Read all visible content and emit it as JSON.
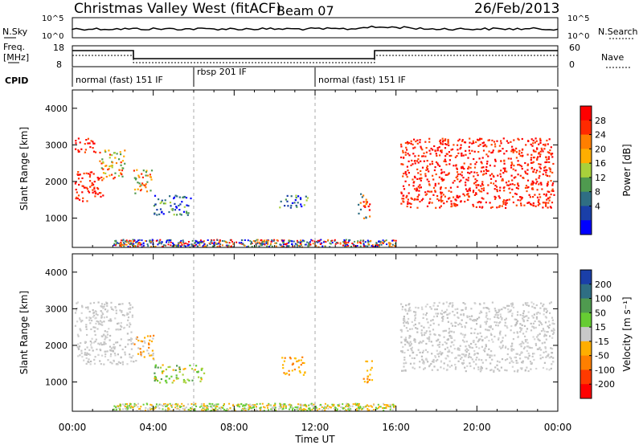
{
  "header": {
    "station": "Christmas Valley West (fitACF)",
    "beam": "Beam 07",
    "date": "26/Feb/2013"
  },
  "top_panels": {
    "noise_left_label": "N.Sky",
    "noise_right_label": "N.Search",
    "noise_ticks_left": [
      "10^5",
      "10^0"
    ],
    "noise_ticks_right": [
      "10^5",
      "10^0"
    ],
    "freq_label_1": "Freq.",
    "freq_label_2": "[MHz]",
    "freq_ticks": [
      "18",
      "8"
    ],
    "nave_label": "Nave",
    "nave_ticks": [
      "60",
      "0"
    ],
    "cpid_label": "CPID",
    "cpid_segments": [
      {
        "label": "normal (fast) 151 IF",
        "start_h": 0,
        "end_h": 6
      },
      {
        "label": "rbsp 201 IF",
        "start_h": 6,
        "end_h": 12
      },
      {
        "label": "normal (fast) 151 IF",
        "start_h": 12,
        "end_h": 24
      }
    ]
  },
  "chart_data": [
    {
      "type": "heatmap",
      "panel": "power",
      "xlabel": "Time UT",
      "ylabel": "Slant Range [km]",
      "xlim": [
        0,
        24
      ],
      "ylim": [
        200,
        4500
      ],
      "yticks": [
        "1000",
        "2000",
        "3000",
        "4000"
      ],
      "colorbar": {
        "label": "Power [dB]",
        "ticks": [
          "28",
          "24",
          "20",
          "16",
          "12",
          "8",
          "4"
        ],
        "colors": [
          "#ff0000",
          "#ff2a00",
          "#ff7f00",
          "#ffae00",
          "#a8d13b",
          "#4f9a4f",
          "#2f6e83",
          "#1a3fa8",
          "#0000ff"
        ]
      },
      "regions": [
        {
          "t": [
            0.1,
            1.5
          ],
          "r": [
            1450,
            2300
          ],
          "level": "red"
        },
        {
          "t": [
            0.1,
            1.2
          ],
          "r": [
            2800,
            3200
          ],
          "level": "red"
        },
        {
          "t": [
            1.3,
            2.6
          ],
          "r": [
            2100,
            2900
          ],
          "level": "orange-green"
        },
        {
          "t": [
            3.0,
            3.9
          ],
          "r": [
            1600,
            2350
          ],
          "level": "orange-red"
        },
        {
          "t": [
            4.0,
            5.9
          ],
          "r": [
            1100,
            1650
          ],
          "level": "blue-green"
        },
        {
          "t": [
            10.2,
            11.6
          ],
          "r": [
            1300,
            1650
          ],
          "level": "blue-green"
        },
        {
          "t": [
            14.1,
            14.7
          ],
          "r": [
            1000,
            1700
          ],
          "level": "red-orange"
        },
        {
          "t": [
            16.2,
            23.8
          ],
          "r": [
            1300,
            3200
          ],
          "level": "red"
        }
      ]
    },
    {
      "type": "heatmap",
      "panel": "velocity",
      "xlabel": "Time UT",
      "ylabel": "Slant Range [km]",
      "xlim": [
        0,
        24
      ],
      "ylim": [
        200,
        4500
      ],
      "yticks": [
        "1000",
        "2000",
        "3000",
        "4000"
      ],
      "xticks": [
        "00:00",
        "04:00",
        "08:00",
        "12:00",
        "16:00",
        "20:00",
        "00:00"
      ],
      "colorbar": {
        "label": "Velocity [m s⁻¹]",
        "ticks": [
          "200",
          "100",
          "50",
          "15",
          "-15",
          "-50",
          "-100",
          "-200"
        ],
        "colors": [
          "#1a3fa8",
          "#2f6e83",
          "#4f9a4f",
          "#66cc33",
          "#c8c8c8",
          "#ffae00",
          "#ff7f00",
          "#ff3a00",
          "#ff0000"
        ]
      },
      "regions": [
        {
          "t": [
            0.1,
            3.0
          ],
          "r": [
            1500,
            3200
          ],
          "level": "grey"
        },
        {
          "t": [
            3.0,
            4.0
          ],
          "r": [
            1600,
            2300
          ],
          "level": "grey-orange"
        },
        {
          "t": [
            4.0,
            6.5
          ],
          "r": [
            1000,
            1500
          ],
          "level": "green-orange"
        },
        {
          "t": [
            10.3,
            11.5
          ],
          "r": [
            1200,
            1700
          ],
          "level": "orange"
        },
        {
          "t": [
            14.3,
            14.8
          ],
          "r": [
            1000,
            1600
          ],
          "level": "orange"
        },
        {
          "t": [
            16.2,
            23.8
          ],
          "r": [
            1300,
            3200
          ],
          "level": "grey"
        }
      ]
    }
  ],
  "colors": {
    "power_red": "#ff0000",
    "velocity_grey": "#c8c8c8"
  }
}
